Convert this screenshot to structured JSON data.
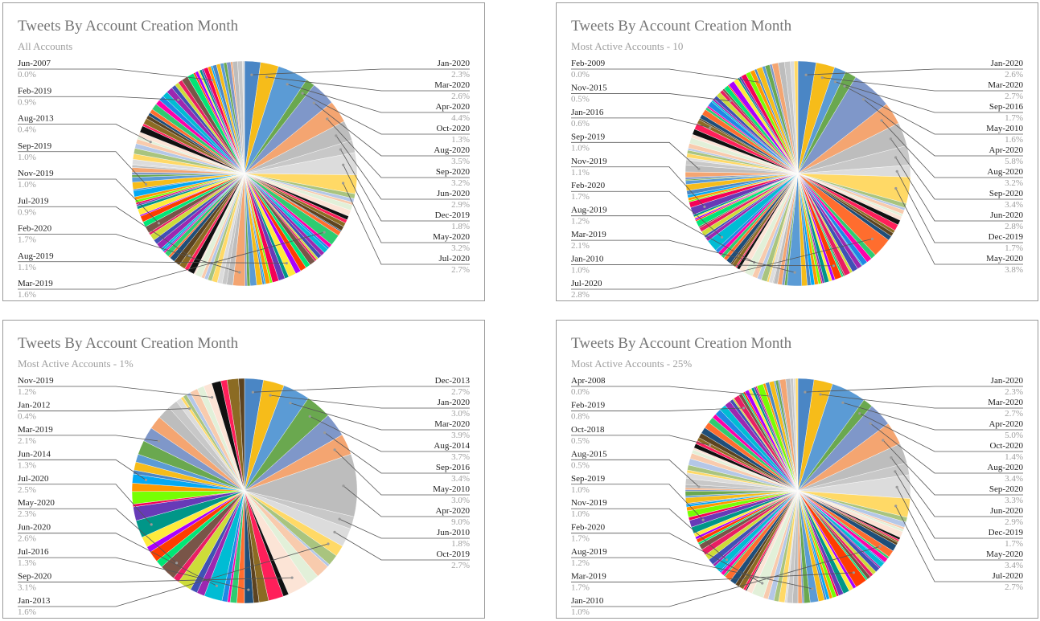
{
  "colors": {
    "palette": [
      "#4a86c5",
      "#f6bc1a",
      "#5b9bd5",
      "#6aa84f",
      "#7f97c9",
      "#f4a571",
      "#bdbdbd",
      "#c8c8c8",
      "#dcdcdc",
      "#ffd966",
      "#a9c47f",
      "#b4c7e7",
      "#f8cbad",
      "#e2f0d9",
      "#fce4d6",
      "#111111",
      "#ff1f5a",
      "#8b6b23",
      "#5c4320",
      "#1f4e79",
      "#ff6d2e",
      "#2ecc71",
      "#ff00aa",
      "#1e88e5",
      "#00bcd4",
      "#9c27b0",
      "#3f51b5",
      "#cddc39",
      "#e91e63",
      "#795548",
      "#00e676",
      "#ff3d00",
      "#aa00ff",
      "#ffeb3b",
      "#009688",
      "#673ab7",
      "#f50057",
      "#76ff03",
      "#ff9800",
      "#03a9f4"
    ],
    "frame": "#9a9a9a",
    "title": "#757575",
    "subtitle": "#9e9e9e",
    "label": "#222222",
    "percent": "#9e9e9e"
  },
  "chart_data": [
    {
      "type": "pie",
      "title": "Tweets By Account Creation Month",
      "subtitle": "All Accounts",
      "labeled_slices": [
        {
          "label": "Jan-2020",
          "value": 2.3
        },
        {
          "label": "Mar-2020",
          "value": 2.6
        },
        {
          "label": "Apr-2020",
          "value": 4.4
        },
        {
          "label": "Oct-2020",
          "value": 1.3
        },
        {
          "label": "Aug-2020",
          "value": 3.5
        },
        {
          "label": "Sep-2020",
          "value": 3.2
        },
        {
          "label": "Jun-2020",
          "value": 2.9
        },
        {
          "label": "Dec-2019",
          "value": 1.8
        },
        {
          "label": "May-2020",
          "value": 3.2
        },
        {
          "label": "Jul-2020",
          "value": 2.7
        },
        {
          "label": "Mar-2019",
          "value": 1.6
        },
        {
          "label": "Aug-2019",
          "value": 1.1
        },
        {
          "label": "Feb-2020",
          "value": 1.7
        },
        {
          "label": "Jul-2019",
          "value": 0.9
        },
        {
          "label": "Nov-2019",
          "value": 1.0
        },
        {
          "label": "Sep-2019",
          "value": 1.0
        },
        {
          "label": "Aug-2013",
          "value": 0.4
        },
        {
          "label": "Feb-2019",
          "value": 0.9
        },
        {
          "label": "Jun-2007",
          "value": 0.0
        }
      ],
      "right_labels": [
        {
          "label": "Jan-2020",
          "pct": "2.3%"
        },
        {
          "label": "Mar-2020",
          "pct": "2.6%"
        },
        {
          "label": "Apr-2020",
          "pct": "4.4%"
        },
        {
          "label": "Oct-2020",
          "pct": "1.3%"
        },
        {
          "label": "Aug-2020",
          "pct": "3.5%"
        },
        {
          "label": "Sep-2020",
          "pct": "3.2%"
        },
        {
          "label": "Jun-2020",
          "pct": "2.9%"
        },
        {
          "label": "Dec-2019",
          "pct": "1.8%"
        },
        {
          "label": "May-2020",
          "pct": "3.2%"
        },
        {
          "label": "Jul-2020",
          "pct": "2.7%"
        }
      ],
      "left_labels": [
        {
          "label": "Jun-2007",
          "pct": "0.0%"
        },
        {
          "label": "Feb-2019",
          "pct": "0.9%"
        },
        {
          "label": "Aug-2013",
          "pct": "0.4%"
        },
        {
          "label": "Sep-2019",
          "pct": "1.0%"
        },
        {
          "label": "Nov-2019",
          "pct": "1.0%"
        },
        {
          "label": "Jul-2019",
          "pct": "0.9%"
        },
        {
          "label": "Feb-2020",
          "pct": "1.7%"
        },
        {
          "label": "Aug-2019",
          "pct": "1.1%"
        },
        {
          "label": "Mar-2019",
          "pct": "1.6%"
        }
      ]
    },
    {
      "type": "pie",
      "title": "Tweets By Account Creation Month",
      "subtitle": "Most Active Accounts - 10",
      "labeled_slices": [
        {
          "label": "Jan-2020",
          "value": 2.6
        },
        {
          "label": "Mar-2020",
          "value": 2.7
        },
        {
          "label": "Sep-2016",
          "value": 1.7
        },
        {
          "label": "May-2010",
          "value": 1.6
        },
        {
          "label": "Apr-2020",
          "value": 5.8
        },
        {
          "label": "Aug-2020",
          "value": 3.2
        },
        {
          "label": "Sep-2020",
          "value": 3.4
        },
        {
          "label": "Jun-2020",
          "value": 2.8
        },
        {
          "label": "Dec-2019",
          "value": 1.7
        },
        {
          "label": "May-2020",
          "value": 3.8
        },
        {
          "label": "Jul-2020",
          "value": 2.8
        },
        {
          "label": "Jan-2010",
          "value": 1.0
        },
        {
          "label": "Mar-2019",
          "value": 2.1
        },
        {
          "label": "Aug-2019",
          "value": 1.2
        },
        {
          "label": "Feb-2020",
          "value": 1.7
        },
        {
          "label": "Nov-2019",
          "value": 1.1
        },
        {
          "label": "Sep-2019",
          "value": 1.0
        },
        {
          "label": "Jan-2016",
          "value": 0.6
        },
        {
          "label": "Nov-2015",
          "value": 0.5
        },
        {
          "label": "Feb-2009",
          "value": 0.0
        }
      ],
      "right_labels": [
        {
          "label": "Jan-2020",
          "pct": "2.6%"
        },
        {
          "label": "Mar-2020",
          "pct": "2.7%"
        },
        {
          "label": "Sep-2016",
          "pct": "1.7%"
        },
        {
          "label": "May-2010",
          "pct": "1.6%"
        },
        {
          "label": "Apr-2020",
          "pct": "5.8%"
        },
        {
          "label": "Aug-2020",
          "pct": "3.2%"
        },
        {
          "label": "Sep-2020",
          "pct": "3.4%"
        },
        {
          "label": "Jun-2020",
          "pct": "2.8%"
        },
        {
          "label": "Dec-2019",
          "pct": "1.7%"
        },
        {
          "label": "May-2020",
          "pct": "3.8%"
        }
      ],
      "left_labels": [
        {
          "label": "Feb-2009",
          "pct": "0.0%"
        },
        {
          "label": "Nov-2015",
          "pct": "0.5%"
        },
        {
          "label": "Jan-2016",
          "pct": "0.6%"
        },
        {
          "label": "Sep-2019",
          "pct": "1.0%"
        },
        {
          "label": "Nov-2019",
          "pct": "1.1%"
        },
        {
          "label": "Feb-2020",
          "pct": "1.7%"
        },
        {
          "label": "Aug-2019",
          "pct": "1.2%"
        },
        {
          "label": "Mar-2019",
          "pct": "2.1%"
        },
        {
          "label": "Jan-2010",
          "pct": "1.0%"
        },
        {
          "label": "Jul-2020",
          "pct": "2.8%"
        }
      ]
    },
    {
      "type": "pie",
      "title": "Tweets By Account Creation Month",
      "subtitle": "Most Active Accounts - 1%",
      "labeled_slices": [
        {
          "label": "Dec-2013",
          "value": 2.7
        },
        {
          "label": "Jan-2020",
          "value": 3.0
        },
        {
          "label": "Mar-2020",
          "value": 3.9
        },
        {
          "label": "Aug-2014",
          "value": 3.7
        },
        {
          "label": "Sep-2016",
          "value": 3.4
        },
        {
          "label": "May-2010",
          "value": 3.0
        },
        {
          "label": "Apr-2020",
          "value": 9.0
        },
        {
          "label": "Jun-2010",
          "value": 1.8
        },
        {
          "label": "Oct-2019",
          "value": 2.7
        },
        {
          "label": "Jan-2013",
          "value": 1.6
        },
        {
          "label": "Sep-2020",
          "value": 3.1
        },
        {
          "label": "Jul-2016",
          "value": 1.3
        },
        {
          "label": "Jun-2020",
          "value": 2.6
        },
        {
          "label": "May-2020",
          "value": 2.3
        },
        {
          "label": "Jul-2020",
          "value": 2.5
        },
        {
          "label": "Jun-2014",
          "value": 1.3
        },
        {
          "label": "Mar-2019",
          "value": 2.1
        },
        {
          "label": "Jan-2012",
          "value": 0.4
        },
        {
          "label": "Nov-2019",
          "value": 1.2
        }
      ],
      "right_labels": [
        {
          "label": "Dec-2013",
          "pct": "2.7%"
        },
        {
          "label": "Jan-2020",
          "pct": "3.0%"
        },
        {
          "label": "Mar-2020",
          "pct": "3.9%"
        },
        {
          "label": "Aug-2014",
          "pct": "3.7%"
        },
        {
          "label": "Sep-2016",
          "pct": "3.4%"
        },
        {
          "label": "May-2010",
          "pct": "3.0%"
        },
        {
          "label": "Apr-2020",
          "pct": "9.0%"
        },
        {
          "label": "Jun-2010",
          "pct": "1.8%"
        },
        {
          "label": "Oct-2019",
          "pct": "2.7%"
        }
      ],
      "left_labels": [
        {
          "label": "Nov-2019",
          "pct": "1.2%"
        },
        {
          "label": "Jan-2012",
          "pct": "0.4%"
        },
        {
          "label": "Mar-2019",
          "pct": "2.1%"
        },
        {
          "label": "Jun-2014",
          "pct": "1.3%"
        },
        {
          "label": "Jul-2020",
          "pct": "2.5%"
        },
        {
          "label": "May-2020",
          "pct": "2.3%"
        },
        {
          "label": "Jun-2020",
          "pct": "2.6%"
        },
        {
          "label": "Jul-2016",
          "pct": "1.3%"
        },
        {
          "label": "Sep-2020",
          "pct": "3.1%"
        },
        {
          "label": "Jan-2013",
          "pct": "1.6%"
        }
      ]
    },
    {
      "type": "pie",
      "title": "Tweets By Account Creation Month",
      "subtitle": "Most Active Accounts - 25%",
      "labeled_slices": [
        {
          "label": "Jan-2020",
          "value": 2.3
        },
        {
          "label": "Mar-2020",
          "value": 2.7
        },
        {
          "label": "Apr-2020",
          "value": 5.0
        },
        {
          "label": "Oct-2020",
          "value": 1.4
        },
        {
          "label": "Aug-2020",
          "value": 3.4
        },
        {
          "label": "Sep-2020",
          "value": 3.3
        },
        {
          "label": "Jun-2020",
          "value": 2.9
        },
        {
          "label": "Dec-2019",
          "value": 1.7
        },
        {
          "label": "May-2020",
          "value": 3.4
        },
        {
          "label": "Jul-2020",
          "value": 2.7
        },
        {
          "label": "Jan-2010",
          "value": 1.0
        },
        {
          "label": "Mar-2019",
          "value": 1.7
        },
        {
          "label": "Aug-2019",
          "value": 1.2
        },
        {
          "label": "Feb-2020",
          "value": 1.7
        },
        {
          "label": "Nov-2019",
          "value": 1.0
        },
        {
          "label": "Sep-2019",
          "value": 1.0
        },
        {
          "label": "Aug-2015",
          "value": 0.5
        },
        {
          "label": "Oct-2018",
          "value": 0.5
        },
        {
          "label": "Feb-2019",
          "value": 0.8
        },
        {
          "label": "Apr-2008",
          "value": 0.0
        }
      ],
      "right_labels": [
        {
          "label": "Jan-2020",
          "pct": "2.3%"
        },
        {
          "label": "Mar-2020",
          "pct": "2.7%"
        },
        {
          "label": "Apr-2020",
          "pct": "5.0%"
        },
        {
          "label": "Oct-2020",
          "pct": "1.4%"
        },
        {
          "label": "Aug-2020",
          "pct": "3.4%"
        },
        {
          "label": "Sep-2020",
          "pct": "3.3%"
        },
        {
          "label": "Jun-2020",
          "pct": "2.9%"
        },
        {
          "label": "Dec-2019",
          "pct": "1.7%"
        },
        {
          "label": "May-2020",
          "pct": "3.4%"
        },
        {
          "label": "Jul-2020",
          "pct": "2.7%"
        }
      ],
      "left_labels": [
        {
          "label": "Apr-2008",
          "pct": "0.0%"
        },
        {
          "label": "Feb-2019",
          "pct": "0.8%"
        },
        {
          "label": "Oct-2018",
          "pct": "0.5%"
        },
        {
          "label": "Aug-2015",
          "pct": "0.5%"
        },
        {
          "label": "Sep-2019",
          "pct": "1.0%"
        },
        {
          "label": "Nov-2019",
          "pct": "1.0%"
        },
        {
          "label": "Feb-2020",
          "pct": "1.7%"
        },
        {
          "label": "Aug-2019",
          "pct": "1.2%"
        },
        {
          "label": "Mar-2019",
          "pct": "1.7%"
        },
        {
          "label": "Jan-2010",
          "pct": "1.0%"
        }
      ]
    }
  ]
}
